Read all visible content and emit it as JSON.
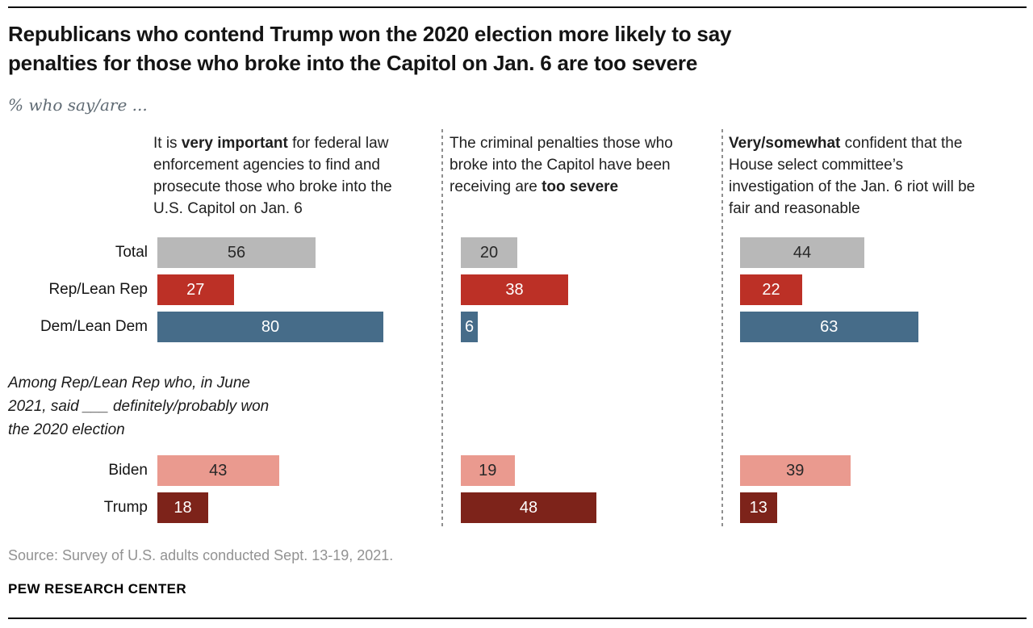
{
  "page": {
    "title": "Republicans who contend Trump won the 2020 election more likely to say\npenalties for those who broke into the Capitol on Jan. 6 are too severe",
    "subtitle": "% who say/are ...",
    "source": "Source: Survey of U.S. adults conducted Sept. 13-19, 2021.",
    "brand": "PEW RESEARCH CENTER"
  },
  "colors": {
    "total": "#b8b8b8",
    "rep": "#bc3026",
    "dem": "#466c89",
    "biden": "#ea9a8f",
    "trump": "#7d231a",
    "value_dark": "#282828",
    "value_light": "#ffffff",
    "divider": "#8f8f8f"
  },
  "chart_data": {
    "type": "bar",
    "orientation": "horizontal",
    "value_unit": "%",
    "xlim": [
      0,
      100
    ],
    "grid": false,
    "legend": "none",
    "categories": [
      "Total",
      "Rep/Lean Rep",
      "Dem/Lean Dem",
      "Biden",
      "Trump"
    ],
    "columns": [
      {
        "header": {
          "pre": "It is ",
          "bold": "very important",
          "post": " for federal law enforcement agencies to find and prosecute those who broke into the U.S. Capitol on Jan. 6"
        }
      },
      {
        "header": {
          "pre": "The criminal penalties those who broke into the Capitol have been receiving are ",
          "bold": "too severe",
          "post": ""
        }
      },
      {
        "header": {
          "pre": "",
          "bold": "Very/somewhat",
          "post": " confident that the House select committee’s investigation of the Jan. 6 riot will be fair and reasonable"
        }
      }
    ],
    "groups": [
      {
        "name": "party",
        "rows": [
          {
            "label": "Total",
            "color": "total",
            "values": [
              56,
              20,
              44
            ],
            "value_text": "dark"
          },
          {
            "label": "Rep/Lean Rep",
            "color": "rep",
            "values": [
              27,
              38,
              22
            ],
            "value_text": "light"
          },
          {
            "label": "Dem/Lean Dem",
            "color": "dem",
            "values": [
              80,
              6,
              63
            ],
            "value_text": "light"
          }
        ]
      },
      {
        "name": "rep-2020-belief",
        "note": "Among Rep/Lean Rep who, in June 2021, said ___ definitely/probably won the 2020 election",
        "rows": [
          {
            "label": "Biden",
            "color": "biden",
            "values": [
              43,
              19,
              39
            ],
            "value_text": "dark"
          },
          {
            "label": "Trump",
            "color": "trump",
            "values": [
              18,
              48,
              13
            ],
            "value_text": "light"
          }
        ]
      }
    ]
  }
}
